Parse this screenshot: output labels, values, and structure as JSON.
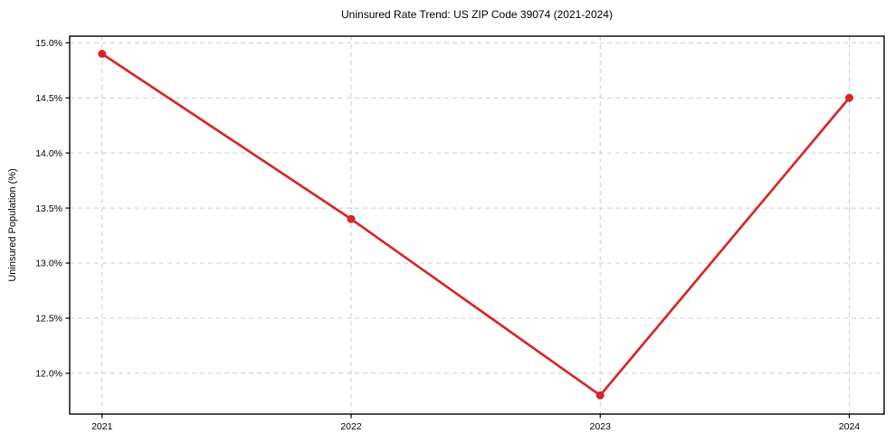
{
  "chart_data": {
    "type": "line",
    "title": "Uninsured Rate Trend: US ZIP Code 39074 (2021-2024)",
    "xlabel": "",
    "ylabel": "Uninsured Population (%)",
    "x": [
      2021,
      2022,
      2023,
      2024
    ],
    "xtick_labels": [
      "2021",
      "2022",
      "2023",
      "2024"
    ],
    "values": [
      14.9,
      13.4,
      11.8,
      14.5
    ],
    "yticks": [
      12.0,
      12.5,
      13.0,
      13.5,
      14.0,
      14.5,
      15.0
    ],
    "ytick_labels": [
      "12.0%",
      "12.5%",
      "13.0%",
      "13.5%",
      "14.0%",
      "14.5%",
      "15.0%"
    ],
    "xlim": [
      2020.87,
      2024.14
    ],
    "ylim": [
      11.63,
      15.06
    ],
    "grid": true,
    "grid_style": "dashed",
    "legend": false,
    "line_color": "#d62728",
    "marker": "circle",
    "marker_radius": 4.5
  }
}
